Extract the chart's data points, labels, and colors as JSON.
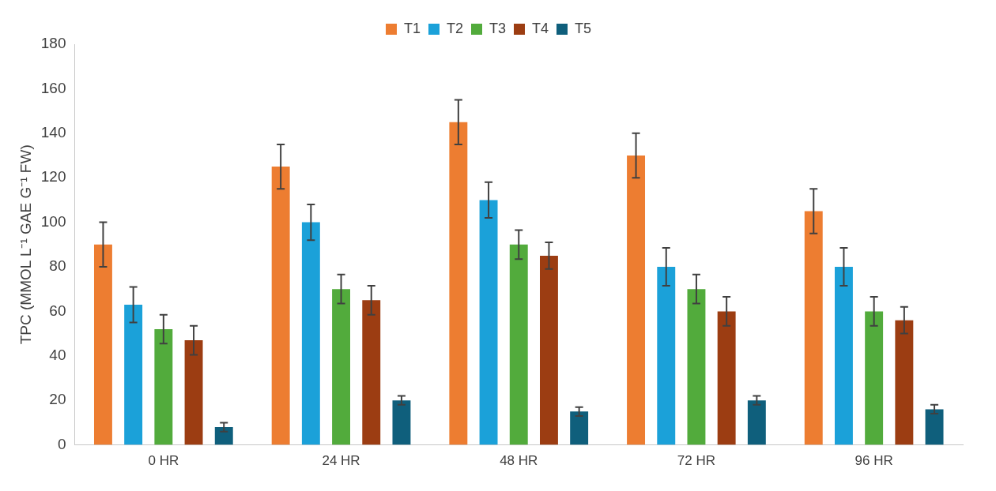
{
  "chart_data": {
    "type": "bar",
    "ylabel": "TPC (MMOL L⁻¹ GAE G⁻¹ FW)",
    "categories": [
      "0 HR",
      "24 HR",
      "48 HR",
      "72 HR",
      "96 HR"
    ],
    "series": [
      {
        "name": "T1",
        "color": "#ed7d31",
        "values": [
          90,
          125,
          145,
          130,
          105
        ],
        "errors": [
          10,
          10,
          10,
          10,
          10
        ]
      },
      {
        "name": "T2",
        "color": "#1ba1d9",
        "values": [
          63,
          100,
          110,
          80,
          80
        ],
        "errors": [
          8,
          8,
          8,
          8.5,
          8.5
        ]
      },
      {
        "name": "T3",
        "color": "#52ab3c",
        "values": [
          52,
          70,
          90,
          70,
          60
        ],
        "errors": [
          6.5,
          6.5,
          6.5,
          6.5,
          6.5
        ]
      },
      {
        "name": "T4",
        "color": "#9c3d12",
        "values": [
          47,
          65,
          85,
          60,
          56
        ],
        "errors": [
          6.5,
          6.5,
          6,
          6.5,
          6
        ]
      },
      {
        "name": "T5",
        "color": "#0f5f7c",
        "values": [
          8,
          20,
          15,
          20,
          16
        ],
        "errors": [
          2,
          2,
          2,
          2,
          2
        ]
      }
    ],
    "ylim": [
      0,
      180
    ],
    "yticks": [
      0,
      20,
      40,
      60,
      80,
      100,
      120,
      140,
      160,
      180
    ],
    "grid": false,
    "legend": "top"
  }
}
